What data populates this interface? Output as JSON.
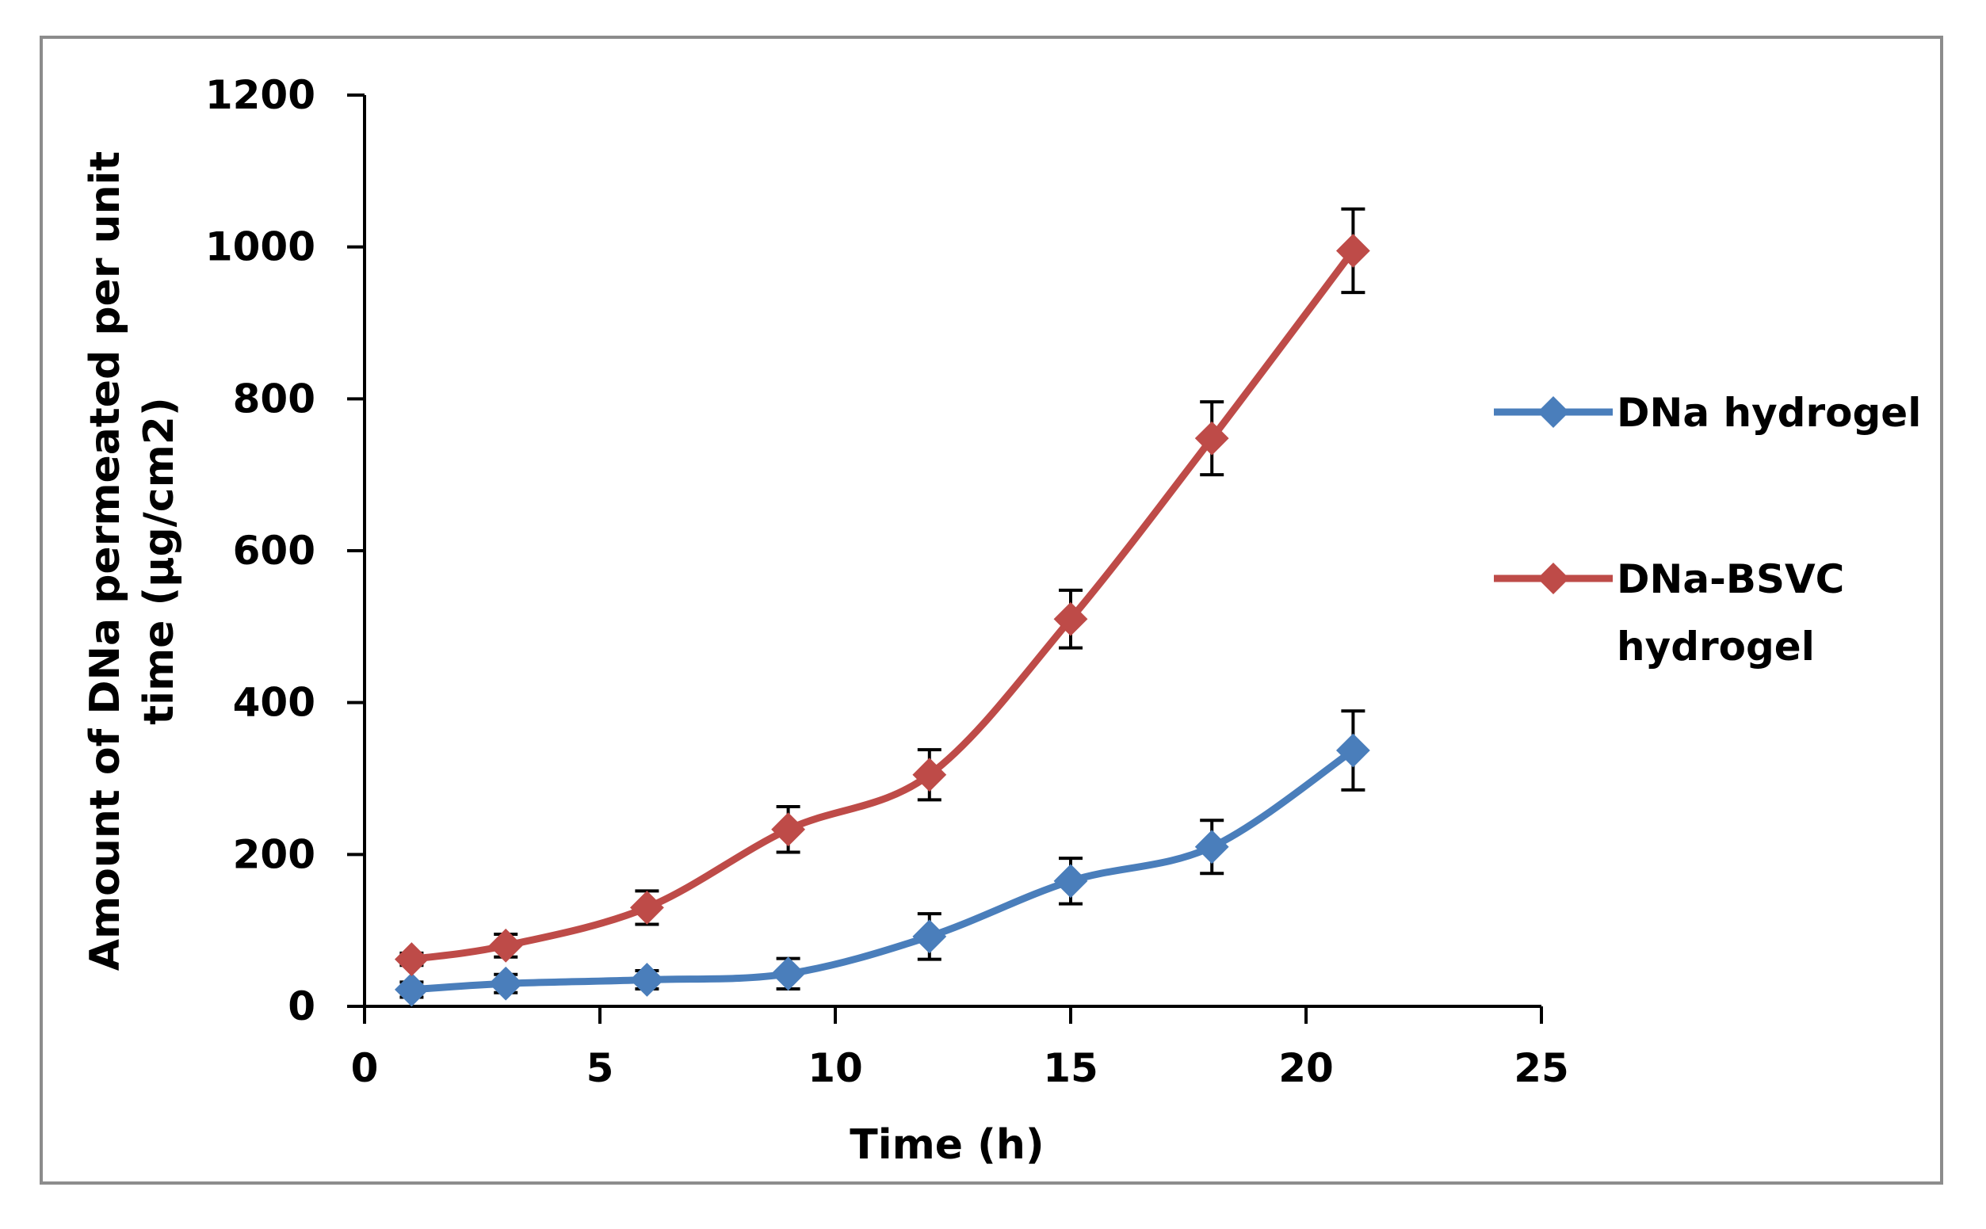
{
  "chart_data": {
    "type": "line",
    "title": "",
    "xlabel": "Time (h)",
    "ylabel_lines": [
      "Amount of DNa permeated per unit",
      "time (µg/cm2)"
    ],
    "xlim": [
      0,
      25
    ],
    "ylim": [
      0,
      1200
    ],
    "xticks": [
      0,
      5,
      10,
      15,
      20,
      25
    ],
    "yticks": [
      0,
      200,
      400,
      600,
      800,
      1000,
      1200
    ],
    "grid": false,
    "legend_position": "right",
    "x": [
      1,
      3,
      6,
      9,
      12,
      15,
      18,
      21
    ],
    "series": [
      {
        "name": "DNa hydrogel",
        "legend_lines": [
          "DNa hydrogel"
        ],
        "color": "#4a7ebb",
        "marker": "diamond",
        "values": [
          22,
          30,
          35,
          43,
          92,
          165,
          210,
          337
        ],
        "errors": [
          10,
          12,
          12,
          20,
          30,
          30,
          35,
          52
        ]
      },
      {
        "name": "DNa-BSVC hydrogel",
        "legend_lines": [
          "DNa-BSVC",
          "hydrogel"
        ],
        "color": "#be4b48",
        "marker": "diamond",
        "values": [
          62,
          80,
          130,
          233,
          305,
          510,
          748,
          995
        ],
        "errors": [
          8,
          15,
          22,
          30,
          33,
          38,
          48,
          55
        ]
      }
    ]
  }
}
